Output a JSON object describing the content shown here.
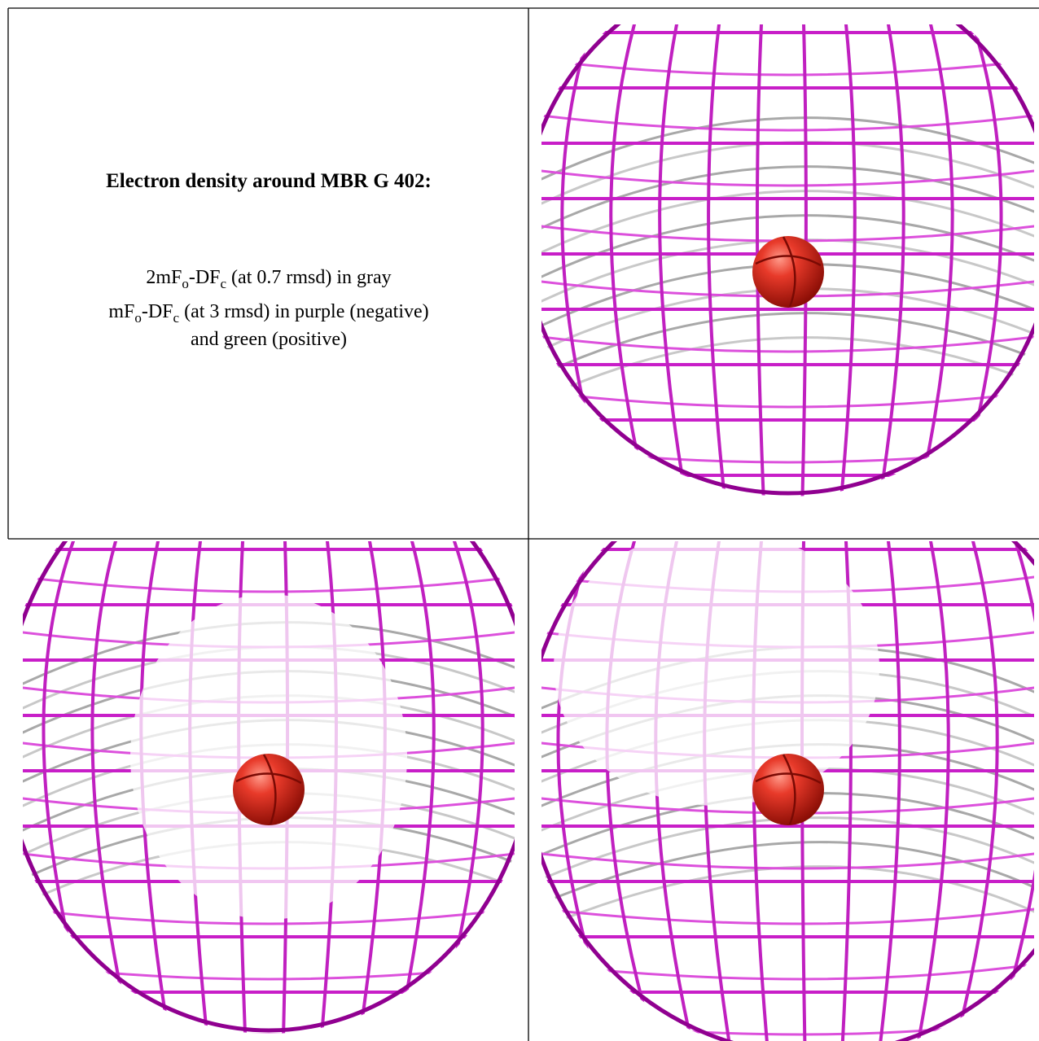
{
  "cell": {
    "title": "Electron density around MBR G 402:",
    "lines": [
      [
        "2mF",
        "o",
        "-DF",
        "c",
        " (at 0.7 rmsd) in gray"
      ],
      [
        "mF",
        "o",
        "-DF",
        "c",
        " (at 3 rmsd) in purple (negative)"
      ],
      [
        "and green (positive)"
      ]
    ]
  }
}
